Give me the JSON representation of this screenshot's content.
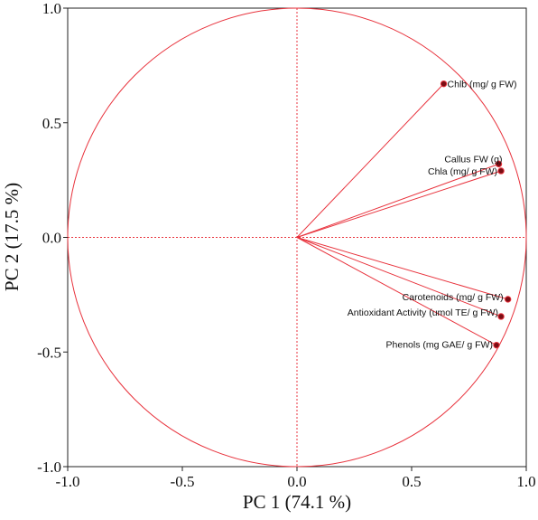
{
  "chart_data": {
    "type": "scatter",
    "subtype": "pca-correlation-circle",
    "xlabel": "PC 1  (74.1 %)",
    "ylabel": "PC 2  (17.5 %)",
    "xlim": [
      -1.0,
      1.0
    ],
    "ylim": [
      -1.0,
      1.0
    ],
    "xticks": [
      -1.0,
      -0.5,
      0.0,
      0.5,
      1.0
    ],
    "yticks": [
      -1.0,
      -0.5,
      0.0,
      0.5,
      1.0
    ],
    "xtick_labels": [
      "-1.0",
      "-0.5",
      "0.0",
      "0.5",
      "1.0"
    ],
    "ytick_labels": [
      "-1.0",
      "-0.5",
      "0.0",
      "0.5",
      "1.0"
    ],
    "grid": false,
    "unit_circle": true,
    "reference_lines": [
      "x=0",
      "y=0"
    ],
    "color": "#e8323c",
    "point_color": "#7a0d14",
    "points": [
      {
        "label": "Chlb (mg/ g FW)",
        "x": 0.64,
        "y": 0.67
      },
      {
        "label": "Callus FW (g)",
        "x": 0.88,
        "y": 0.32
      },
      {
        "label": "Chla (mg/ g FW)",
        "x": 0.89,
        "y": 0.29
      },
      {
        "label": "Carotenoids (mg/ g FW)",
        "x": 0.92,
        "y": -0.27
      },
      {
        "label": "Antioxidant Activity (umol TE/ g FW)",
        "x": 0.89,
        "y": -0.345
      },
      {
        "label": "Phenols (mg GAE/ g FW)",
        "x": 0.87,
        "y": -0.47
      }
    ]
  }
}
